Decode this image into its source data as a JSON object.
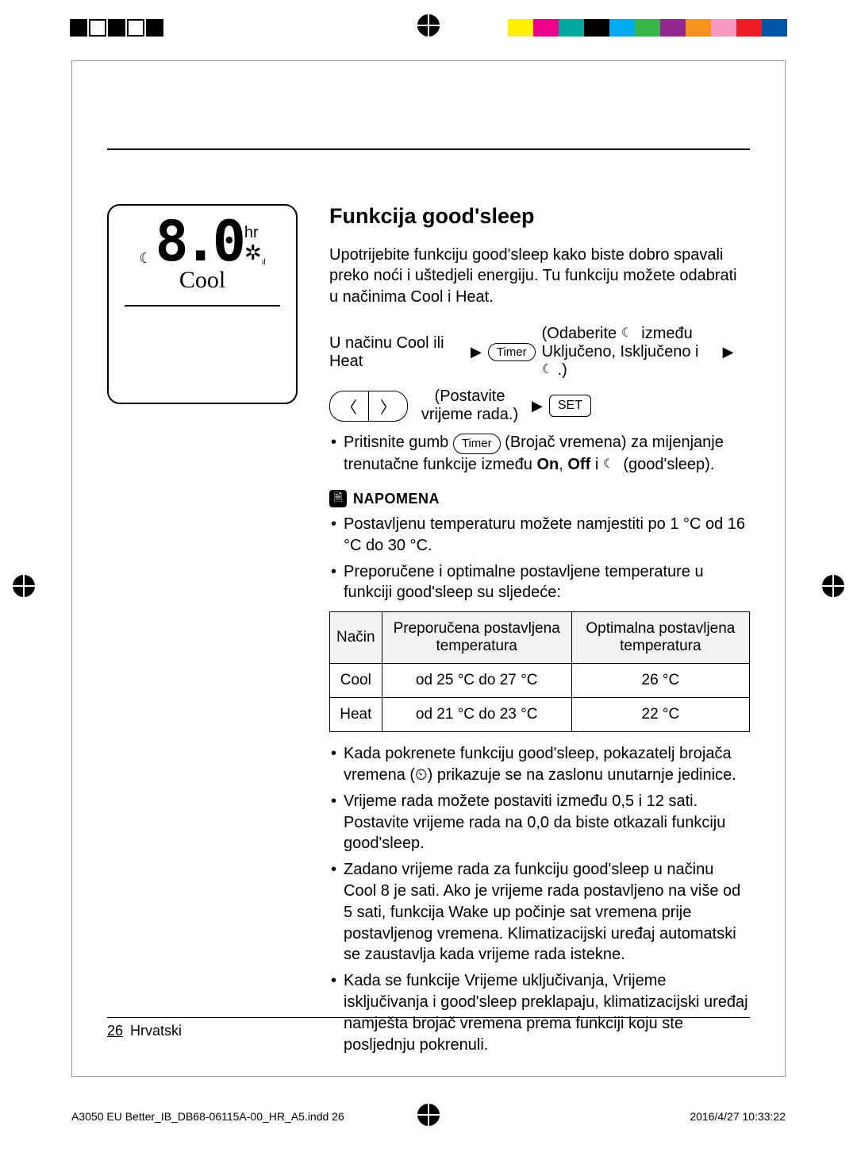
{
  "reg_swatches": [
    "#fff200",
    "#ec008c",
    "#00a99d",
    "#000000",
    "#00aeef",
    "#39b54a",
    "#92278f",
    "#f7941d",
    "#f49ac1",
    "#ed1c24",
    "#0054a6"
  ],
  "remote": {
    "seg_digits": "8.0",
    "hr_label": "hr",
    "mode": "Cool"
  },
  "heading": "Funkcija good'sleep",
  "intro": "Upotrijebite funkciju good'sleep kako biste dobro spavali preko noći i uštedjeli energiju. Tu funkciju možete odabrati u načinima Cool i Heat.",
  "flow": {
    "step1": "U načinu Cool ili Heat",
    "timer_btn": "Timer",
    "step2_pre": "(Odaberite ",
    "step2_post": " između Uključeno, Isključeno i ",
    "step2_end": ".)",
    "left_sym": "〈",
    "right_sym": "〉",
    "step3": "(Postavite vrijeme rada.)",
    "set_btn": "SET"
  },
  "timer_bullet_pre": "Pritisnite gumb ",
  "timer_bullet_mid": " (Brojač vremena) za mijenjanje trenutačne funkcije između ",
  "on": "On",
  "off": "Off",
  "and_i": " i  ",
  "goodsleep_paren": " (good'sleep).",
  "note_label": "NAPOMENA",
  "notes_a": [
    "Postavljenu temperaturu možete namjestiti po 1 °C od 16 °C do 30 °C.",
    "Preporučene i optimalne postavljene temperature u funkciji good'sleep su sljedeće:"
  ],
  "table": {
    "headers": [
      "Način",
      "Preporučena postavljena temperatura",
      "Optimalna postavljena temperatura"
    ],
    "rows": [
      [
        "Cool",
        "od 25 °C do 27 °C",
        "26 °C"
      ],
      [
        "Heat",
        "od 21 °C do 23 °C",
        "22 °C"
      ]
    ]
  },
  "notes_b": [
    "Kada pokrenete funkciju good'sleep, pokazatelj brojača vremena (⏲) prikazuje se na zaslonu unutarnje jedinice.",
    "Vrijeme rada možete postaviti između 0,5 i 12 sati. Postavite vrijeme rada na 0,0 da biste otkazali funkciju good'sleep.",
    "Zadano vrijeme rada za funkciju good'sleep u načinu Cool 8 je sati. Ako je vrijeme rada postavljeno na više od 5 sati, funkcija Wake up počinje sat vremena prije postavljenog vremena. Klimatizacijski uređaj automatski se zaustavlja kada vrijeme rada istekne.",
    "Kada se funkcije Vrijeme uključivanja, Vrijeme isključivanja i good'sleep preklapaju, klimatizacijski uređaj namješta brojač vremena prema funkciji koju ste posljednju pokrenuli."
  ],
  "footer": {
    "page": "26",
    "lang": "Hrvatski"
  },
  "slug": {
    "file": "A3050 EU Better_IB_DB68-06115A-00_HR_A5.indd   26",
    "date": "2016/4/27   10:33:22"
  }
}
